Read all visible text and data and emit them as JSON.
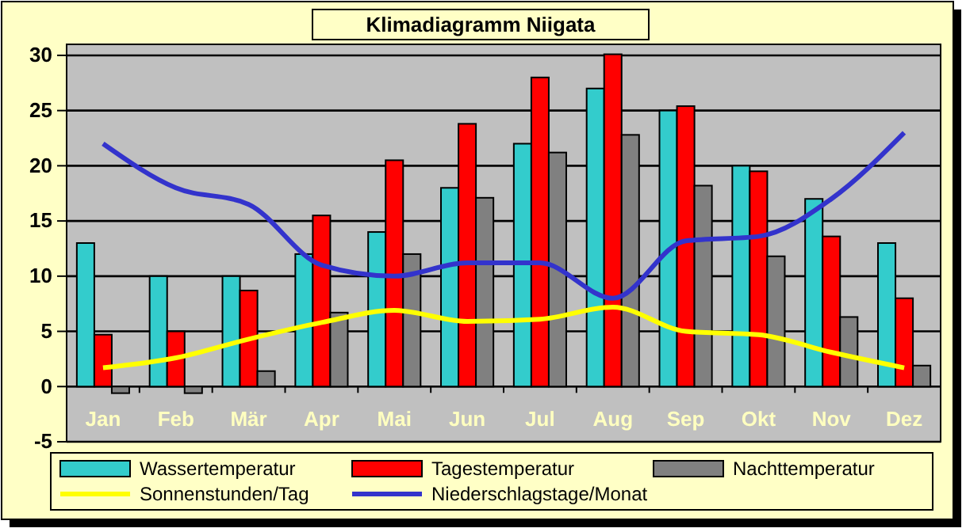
{
  "chart_data": {
    "type": "bar",
    "title": "Klimadiagramm Niigata",
    "categories": [
      "Jan",
      "Feb",
      "Mär",
      "Apr",
      "Mai",
      "Jun",
      "Jul",
      "Aug",
      "Sep",
      "Okt",
      "Nov",
      "Dez"
    ],
    "series": [
      {
        "name": "Wassertemperatur",
        "color": "#33cccc",
        "values": [
          13,
          10,
          10,
          12,
          14,
          18,
          22,
          27,
          25,
          20,
          17,
          13
        ]
      },
      {
        "name": "Tagestemperatur",
        "color": "#ff0000",
        "values": [
          4.7,
          5,
          8.7,
          15.5,
          20.5,
          23.8,
          28,
          30.1,
          25.4,
          19.5,
          13.6,
          8
        ]
      },
      {
        "name": "Nachttemperatur",
        "color": "#808080",
        "values": [
          -0.6,
          -0.6,
          1.4,
          6.7,
          12,
          17.1,
          21.2,
          22.8,
          18.2,
          11.8,
          6.3,
          1.9
        ]
      },
      {
        "name": "Sonnenstunden/Tag",
        "type": "line",
        "color": "#ffff00",
        "values": [
          1.7,
          2.6,
          4.3,
          5.8,
          6.9,
          5.9,
          6.1,
          7.2,
          5.0,
          4.7,
          3.1,
          1.7
        ]
      },
      {
        "name": "Niederschlagstage/Monat",
        "type": "line",
        "color": "#3333cc",
        "values": [
          22,
          18,
          16.5,
          11,
          10,
          11.2,
          11.2,
          8,
          13.2,
          13.6,
          17,
          23
        ]
      }
    ],
    "ylim": [
      -5,
      31
    ],
    "yticks": [
      -5,
      0,
      5,
      10,
      15,
      20,
      25,
      30
    ],
    "grid": "y",
    "legend": "bottom",
    "marker": "none",
    "line_style": "solid"
  }
}
